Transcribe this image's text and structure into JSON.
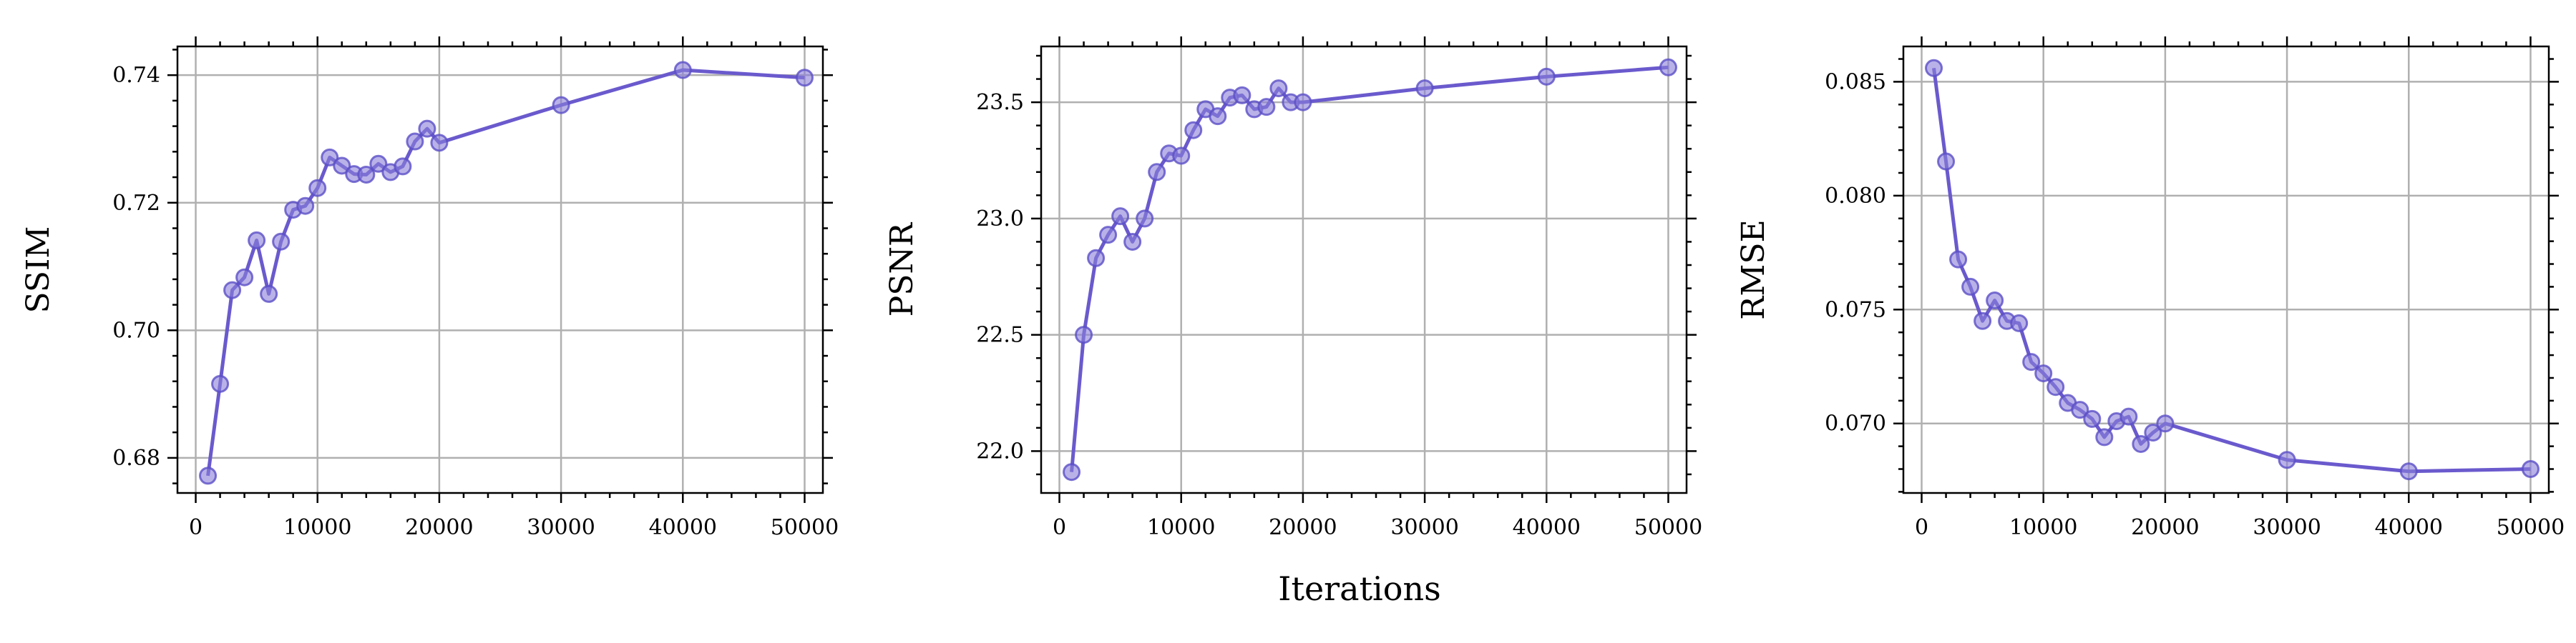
{
  "figure": {
    "shared_xlabel": "Iterations"
  },
  "colors": {
    "line": "#6a5acd",
    "marker_fill": "#8a7fd8",
    "marker_edge": "#5b4fc7"
  },
  "chart_data": [
    {
      "type": "line",
      "title": "",
      "xlabel": "",
      "ylabel": "SSIM",
      "xlim": [
        -1500,
        51500
      ],
      "ylim": [
        0.6745,
        0.7445
      ],
      "x_ticks": [
        0,
        10000,
        20000,
        30000,
        40000,
        50000
      ],
      "x_tick_labels": [
        "0",
        "10000",
        "20000",
        "30000",
        "40000",
        "50000"
      ],
      "y_ticks": [
        0.68,
        0.7,
        0.72,
        0.74
      ],
      "y_tick_labels": [
        "0.68",
        "0.70",
        "0.72",
        "0.74"
      ],
      "grid": true,
      "series": [
        {
          "x": [
            1000,
            2000,
            3000,
            4000,
            5000,
            6000,
            7000,
            8000,
            9000,
            10000,
            11000,
            12000,
            13000,
            14000,
            15000,
            16000,
            17000,
            18000,
            19000,
            20000,
            30000,
            40000,
            50000
          ],
          "y": [
            0.6772,
            0.6916,
            0.7063,
            0.7083,
            0.7141,
            0.7057,
            0.7139,
            0.7189,
            0.7195,
            0.7223,
            0.7271,
            0.7258,
            0.7245,
            0.7244,
            0.7261,
            0.7248,
            0.7257,
            0.7296,
            0.7316,
            0.7294,
            0.7353,
            0.7408,
            0.7396
          ]
        }
      ]
    },
    {
      "type": "line",
      "title": "",
      "xlabel": "",
      "ylabel": "PSNR",
      "xlim": [
        -1500,
        51500
      ],
      "ylim": [
        21.82,
        23.74
      ],
      "x_ticks": [
        0,
        10000,
        20000,
        30000,
        40000,
        50000
      ],
      "x_tick_labels": [
        "0",
        "10000",
        "20000",
        "30000",
        "40000",
        "50000"
      ],
      "y_ticks": [
        22.0,
        22.5,
        23.0,
        23.5
      ],
      "y_tick_labels": [
        "22.0",
        "22.5",
        "23.0",
        "23.5"
      ],
      "grid": true,
      "series": [
        {
          "x": [
            1000,
            2000,
            3000,
            4000,
            5000,
            6000,
            7000,
            8000,
            9000,
            10000,
            11000,
            12000,
            13000,
            14000,
            15000,
            16000,
            17000,
            18000,
            19000,
            20000,
            30000,
            40000,
            50000
          ],
          "y": [
            21.91,
            22.5,
            22.83,
            22.93,
            23.01,
            22.9,
            23.0,
            23.2,
            23.28,
            23.27,
            23.38,
            23.47,
            23.44,
            23.52,
            23.53,
            23.47,
            23.48,
            23.56,
            23.5,
            23.5,
            23.56,
            23.61,
            23.65
          ]
        }
      ]
    },
    {
      "type": "line",
      "title": "",
      "xlabel": "",
      "ylabel": "RMSE",
      "xlim": [
        -1500,
        51500
      ],
      "ylim": [
        0.06695,
        0.08655
      ],
      "x_ticks": [
        0,
        10000,
        20000,
        30000,
        40000,
        50000
      ],
      "x_tick_labels": [
        "0",
        "10000",
        "20000",
        "30000",
        "40000",
        "50000"
      ],
      "y_ticks": [
        0.07,
        0.075,
        0.08,
        0.085
      ],
      "y_tick_labels": [
        "0.070",
        "0.075",
        "0.080",
        "0.085"
      ],
      "grid": true,
      "series": [
        {
          "x": [
            1000,
            2000,
            3000,
            4000,
            5000,
            6000,
            7000,
            8000,
            9000,
            10000,
            11000,
            12000,
            13000,
            14000,
            15000,
            16000,
            17000,
            18000,
            19000,
            20000,
            30000,
            40000,
            50000
          ],
          "y": [
            0.0856,
            0.0815,
            0.0772,
            0.076,
            0.0745,
            0.0754,
            0.0745,
            0.0744,
            0.0727,
            0.0722,
            0.0716,
            0.0709,
            0.0706,
            0.0702,
            0.0694,
            0.0701,
            0.0703,
            0.0691,
            0.0696,
            0.07,
            0.0684,
            0.0679,
            0.068
          ]
        }
      ]
    }
  ]
}
